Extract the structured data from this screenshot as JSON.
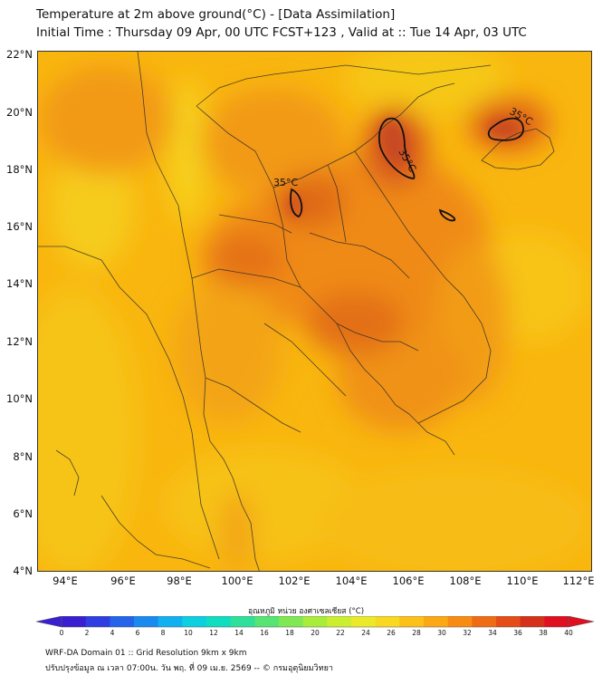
{
  "title": {
    "line1": "Temperature at 2m above ground(°C) - [Data Assimilation]",
    "line2": "Initial Time : Thursday 09 Apr, 00 UTC FCST+123 , Valid at :: Tue 14 Apr, 03 UTC"
  },
  "axes": {
    "lat_labels": [
      "22°N",
      "20°N",
      "18°N",
      "16°N",
      "14°N",
      "12°N",
      "10°N",
      "8°N",
      "6°N",
      "4°N"
    ],
    "lon_labels": [
      "94°E",
      "96°E",
      "98°E",
      "100°E",
      "102°E",
      "104°E",
      "106°E",
      "108°E",
      "110°E",
      "112°E"
    ]
  },
  "contours": {
    "label_1": "35°C",
    "label_2": "35°C",
    "label_3": "35°C"
  },
  "colorbar": {
    "title": "อุณหภูมิ หน่วย องศาเซลเซียส (°C)",
    "ticks": [
      "0",
      "2",
      "4",
      "6",
      "8",
      "10",
      "12",
      "14",
      "16",
      "18",
      "20",
      "22",
      "24",
      "26",
      "28",
      "30",
      "32",
      "34",
      "36",
      "38",
      "40"
    ],
    "colors": [
      "#3a1fd0",
      "#2f3ee0",
      "#2563ea",
      "#1b8af0",
      "#12b0f0",
      "#0ccfe0",
      "#10dcc0",
      "#2ee09a",
      "#56e472",
      "#80e852",
      "#a8ec3c",
      "#ccee30",
      "#eaea2a",
      "#f8d820",
      "#fcc018",
      "#fca814",
      "#f88c12",
      "#f06c14",
      "#e44c18",
      "#d4301a",
      "#e01020"
    ]
  },
  "footer": {
    "line1": "WRF-DA Domain 01 :: Grid Resolution 9km x 9km",
    "line2": "ปรับปรุงข้อมูล ณ เวลา 07:00น. วัน พฤ. ที่ 09 เม.ย. 2569 -- © กรมอุตุนิยมวิทยา"
  }
}
